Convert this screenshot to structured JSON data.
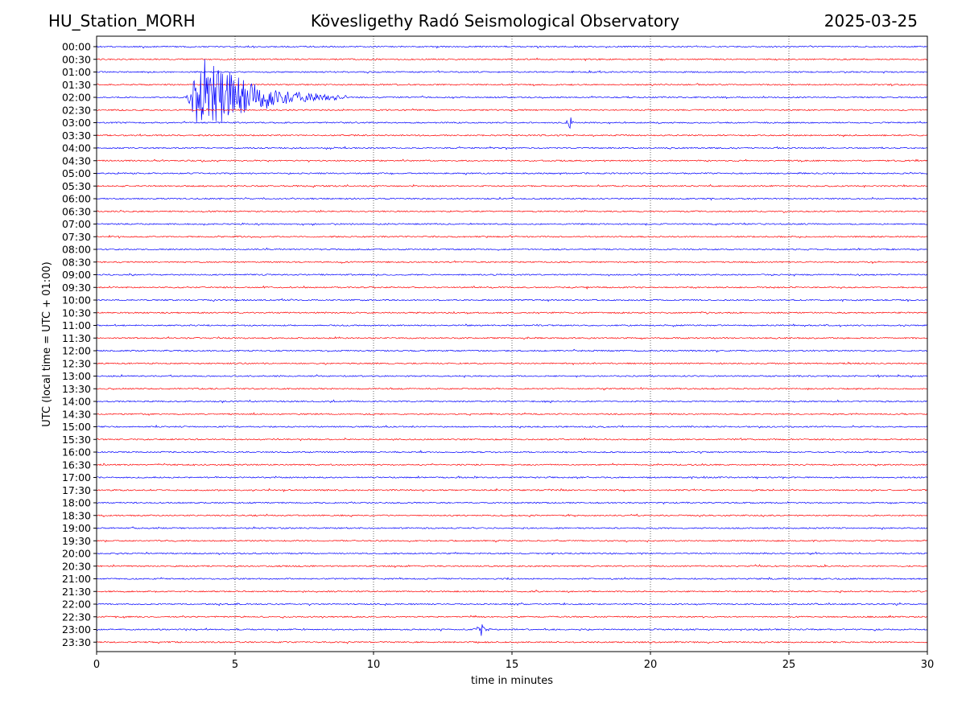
{
  "header": {
    "station": "HU_Station_MORH",
    "title": "Kövesligethy Radó Seismological Observatory",
    "date": "2025-03-25"
  },
  "colors": {
    "even_trace": "#0000ff",
    "odd_trace": "#ff0000",
    "axis": "#000000",
    "grid": "#000000"
  },
  "chart_data": {
    "type": "line",
    "subtype": "helicorder",
    "xlabel": "time in minutes",
    "ylabel": "UTC (local time = UTC + 01:00)",
    "xlim": [
      0,
      30
    ],
    "x_ticks": [
      "0",
      "5",
      "10",
      "15",
      "20",
      "25",
      "30"
    ],
    "grid": "vertical dotted lines at 5, 10, 15, 20, 25 minutes",
    "row_labels": [
      "00:00",
      "00:30",
      "01:00",
      "01:30",
      "02:00",
      "02:30",
      "03:00",
      "03:30",
      "04:00",
      "04:30",
      "05:00",
      "05:30",
      "06:00",
      "06:30",
      "07:00",
      "07:30",
      "08:00",
      "08:30",
      "09:00",
      "09:30",
      "10:00",
      "10:30",
      "11:00",
      "11:30",
      "12:00",
      "12:30",
      "13:00",
      "13:30",
      "14:00",
      "14:30",
      "15:00",
      "15:30",
      "16:00",
      "16:30",
      "17:00",
      "17:30",
      "18:00",
      "18:30",
      "19:00",
      "19:30",
      "20:00",
      "20:30",
      "21:00",
      "21:30",
      "22:00",
      "22:30",
      "23:00",
      "23:30"
    ],
    "color_alternation": [
      "blue",
      "red"
    ],
    "events": [
      {
        "row": "02:00",
        "start_min": 3.2,
        "peak_min": 3.9,
        "end_min": 9.0,
        "peak_amplitude": 3.5
      },
      {
        "row": "03:00",
        "start_min": 16.9,
        "peak_min": 17.1,
        "end_min": 17.3,
        "peak_amplitude": 0.6
      },
      {
        "row": "23:00",
        "start_min": 13.6,
        "peak_min": 13.9,
        "end_min": 14.4,
        "peak_amplitude": 0.5
      }
    ]
  }
}
